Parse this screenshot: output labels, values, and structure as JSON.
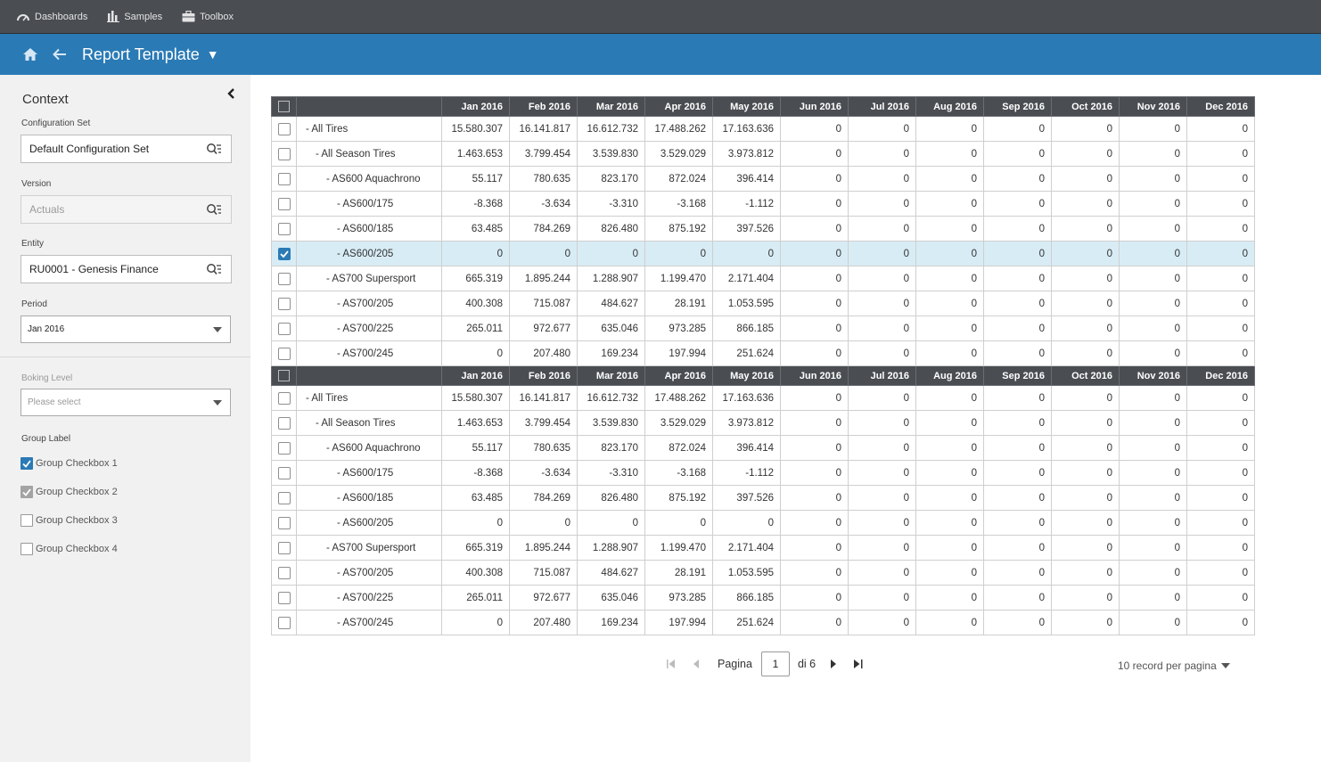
{
  "topnav": {
    "items": [
      {
        "label": "Dashboards",
        "icon": "gauge-icon"
      },
      {
        "label": "Samples",
        "icon": "bar-chart-icon"
      },
      {
        "label": "Toolbox",
        "icon": "briefcase-icon"
      }
    ]
  },
  "header": {
    "title": "Report Template",
    "caret": "▼",
    "accent": "#2a7ab5"
  },
  "sidebar": {
    "title": "Context",
    "config_set": {
      "label": "Configuration Set",
      "value": "Default Configuration Set"
    },
    "version": {
      "label": "Version",
      "value": "Actuals"
    },
    "entity": {
      "label": "Entity",
      "value": "RU0001 - Genesis Finance"
    },
    "period": {
      "label": "Period",
      "value": "Jan 2016"
    },
    "booking_level": {
      "label": "Boking Level",
      "placeholder": "Please select"
    },
    "group_label": "Group Label",
    "checkboxes": [
      {
        "label": "Group Checkbox 1",
        "state": "checked"
      },
      {
        "label": "Group Checkbox 2",
        "state": "checked-disabled"
      },
      {
        "label": "Group Checkbox 3",
        "state": "unchecked"
      },
      {
        "label": "Group Checkbox 4",
        "state": "unchecked"
      }
    ]
  },
  "grid": {
    "columns": [
      "Jan 2016",
      "Feb 2016",
      "Mar 2016",
      "Apr 2016",
      "May 2016",
      "Jun 2016",
      "Jul 2016",
      "Aug 2016",
      "Sep 2016",
      "Oct 2016",
      "Nov 2016",
      "Dec 2016"
    ],
    "groups": [
      {
        "rows": [
          {
            "name": "- All Tires",
            "level": 0,
            "selected": false,
            "values": [
              "15.580.307",
              "16.141.817",
              "16.612.732",
              "17.488.262",
              "17.163.636",
              "0",
              "0",
              "0",
              "0",
              "0",
              "0",
              "0"
            ]
          },
          {
            "name": "- All Season Tires",
            "level": 1,
            "selected": false,
            "values": [
              "1.463.653",
              "3.799.454",
              "3.539.830",
              "3.529.029",
              "3.973.812",
              "0",
              "0",
              "0",
              "0",
              "0",
              "0",
              "0"
            ]
          },
          {
            "name": "- AS600 Aquachrono",
            "level": 2,
            "selected": false,
            "values": [
              "55.117",
              "780.635",
              "823.170",
              "872.024",
              "396.414",
              "0",
              "0",
              "0",
              "0",
              "0",
              "0",
              "0"
            ]
          },
          {
            "name": "- AS600/175",
            "level": 3,
            "selected": false,
            "negative": true,
            "values": [
              "-8.368",
              "-3.634",
              "-3.310",
              "-3.168",
              "-1.112",
              "0",
              "0",
              "0",
              "0",
              "0",
              "0",
              "0"
            ]
          },
          {
            "name": "- AS600/185",
            "level": 3,
            "selected": false,
            "values": [
              "63.485",
              "784.269",
              "826.480",
              "875.192",
              "397.526",
              "0",
              "0",
              "0",
              "0",
              "0",
              "0",
              "0"
            ]
          },
          {
            "name": "- AS600/205",
            "level": 3,
            "selected": true,
            "values": [
              "0",
              "0",
              "0",
              "0",
              "0",
              "0",
              "0",
              "0",
              "0",
              "0",
              "0",
              "0"
            ]
          },
          {
            "name": "- AS700 Supersport",
            "level": 2,
            "selected": false,
            "values": [
              "665.319",
              "1.895.244",
              "1.288.907",
              "1.199.470",
              "2.171.404",
              "0",
              "0",
              "0",
              "0",
              "0",
              "0",
              "0"
            ]
          },
          {
            "name": "- AS700/205",
            "level": 3,
            "selected": false,
            "values": [
              "400.308",
              "715.087",
              "484.627",
              "28.191",
              "1.053.595",
              "0",
              "0",
              "0",
              "0",
              "0",
              "0",
              "0"
            ]
          },
          {
            "name": "- AS700/225",
            "level": 3,
            "selected": false,
            "values": [
              "265.011",
              "972.677",
              "635.046",
              "973.285",
              "866.185",
              "0",
              "0",
              "0",
              "0",
              "0",
              "0",
              "0"
            ]
          },
          {
            "name": "- AS700/245",
            "level": 3,
            "selected": false,
            "values": [
              "0",
              "207.480",
              "169.234",
              "197.994",
              "251.624",
              "0",
              "0",
              "0",
              "0",
              "0",
              "0",
              "0"
            ]
          }
        ]
      },
      {
        "rows": [
          {
            "name": "- All Tires",
            "level": 0,
            "selected": false,
            "values": [
              "15.580.307",
              "16.141.817",
              "16.612.732",
              "17.488.262",
              "17.163.636",
              "0",
              "0",
              "0",
              "0",
              "0",
              "0",
              "0"
            ]
          },
          {
            "name": "- All Season Tires",
            "level": 1,
            "selected": false,
            "values": [
              "1.463.653",
              "3.799.454",
              "3.539.830",
              "3.529.029",
              "3.973.812",
              "0",
              "0",
              "0",
              "0",
              "0",
              "0",
              "0"
            ]
          },
          {
            "name": "- AS600 Aquachrono",
            "level": 2,
            "selected": false,
            "values": [
              "55.117",
              "780.635",
              "823.170",
              "872.024",
              "396.414",
              "0",
              "0",
              "0",
              "0",
              "0",
              "0",
              "0"
            ]
          },
          {
            "name": "- AS600/175",
            "level": 3,
            "selected": false,
            "negative": true,
            "values": [
              "-8.368",
              "-3.634",
              "-3.310",
              "-3.168",
              "-1.112",
              "0",
              "0",
              "0",
              "0",
              "0",
              "0",
              "0"
            ]
          },
          {
            "name": "- AS600/185",
            "level": 3,
            "selected": false,
            "values": [
              "63.485",
              "784.269",
              "826.480",
              "875.192",
              "397.526",
              "0",
              "0",
              "0",
              "0",
              "0",
              "0",
              "0"
            ]
          },
          {
            "name": "- AS600/205",
            "level": 3,
            "selected": false,
            "values": [
              "0",
              "0",
              "0",
              "0",
              "0",
              "0",
              "0",
              "0",
              "0",
              "0",
              "0",
              "0"
            ]
          },
          {
            "name": "- AS700 Supersport",
            "level": 2,
            "selected": false,
            "values": [
              "665.319",
              "1.895.244",
              "1.288.907",
              "1.199.470",
              "2.171.404",
              "0",
              "0",
              "0",
              "0",
              "0",
              "0",
              "0"
            ]
          },
          {
            "name": "- AS700/205",
            "level": 3,
            "selected": false,
            "values": [
              "400.308",
              "715.087",
              "484.627",
              "28.191",
              "1.053.595",
              "0",
              "0",
              "0",
              "0",
              "0",
              "0",
              "0"
            ]
          },
          {
            "name": "- AS700/225",
            "level": 3,
            "selected": false,
            "values": [
              "265.011",
              "972.677",
              "635.046",
              "973.285",
              "866.185",
              "0",
              "0",
              "0",
              "0",
              "0",
              "0",
              "0"
            ]
          },
          {
            "name": "- AS700/245",
            "level": 3,
            "selected": false,
            "values": [
              "0",
              "207.480",
              "169.234",
              "197.994",
              "251.624",
              "0",
              "0",
              "0",
              "0",
              "0",
              "0",
              "0"
            ]
          }
        ]
      }
    ]
  },
  "pager": {
    "page_label": "Pagina",
    "current_page": "1",
    "of_label": "di 6",
    "per_page": "10 record per pagina"
  }
}
